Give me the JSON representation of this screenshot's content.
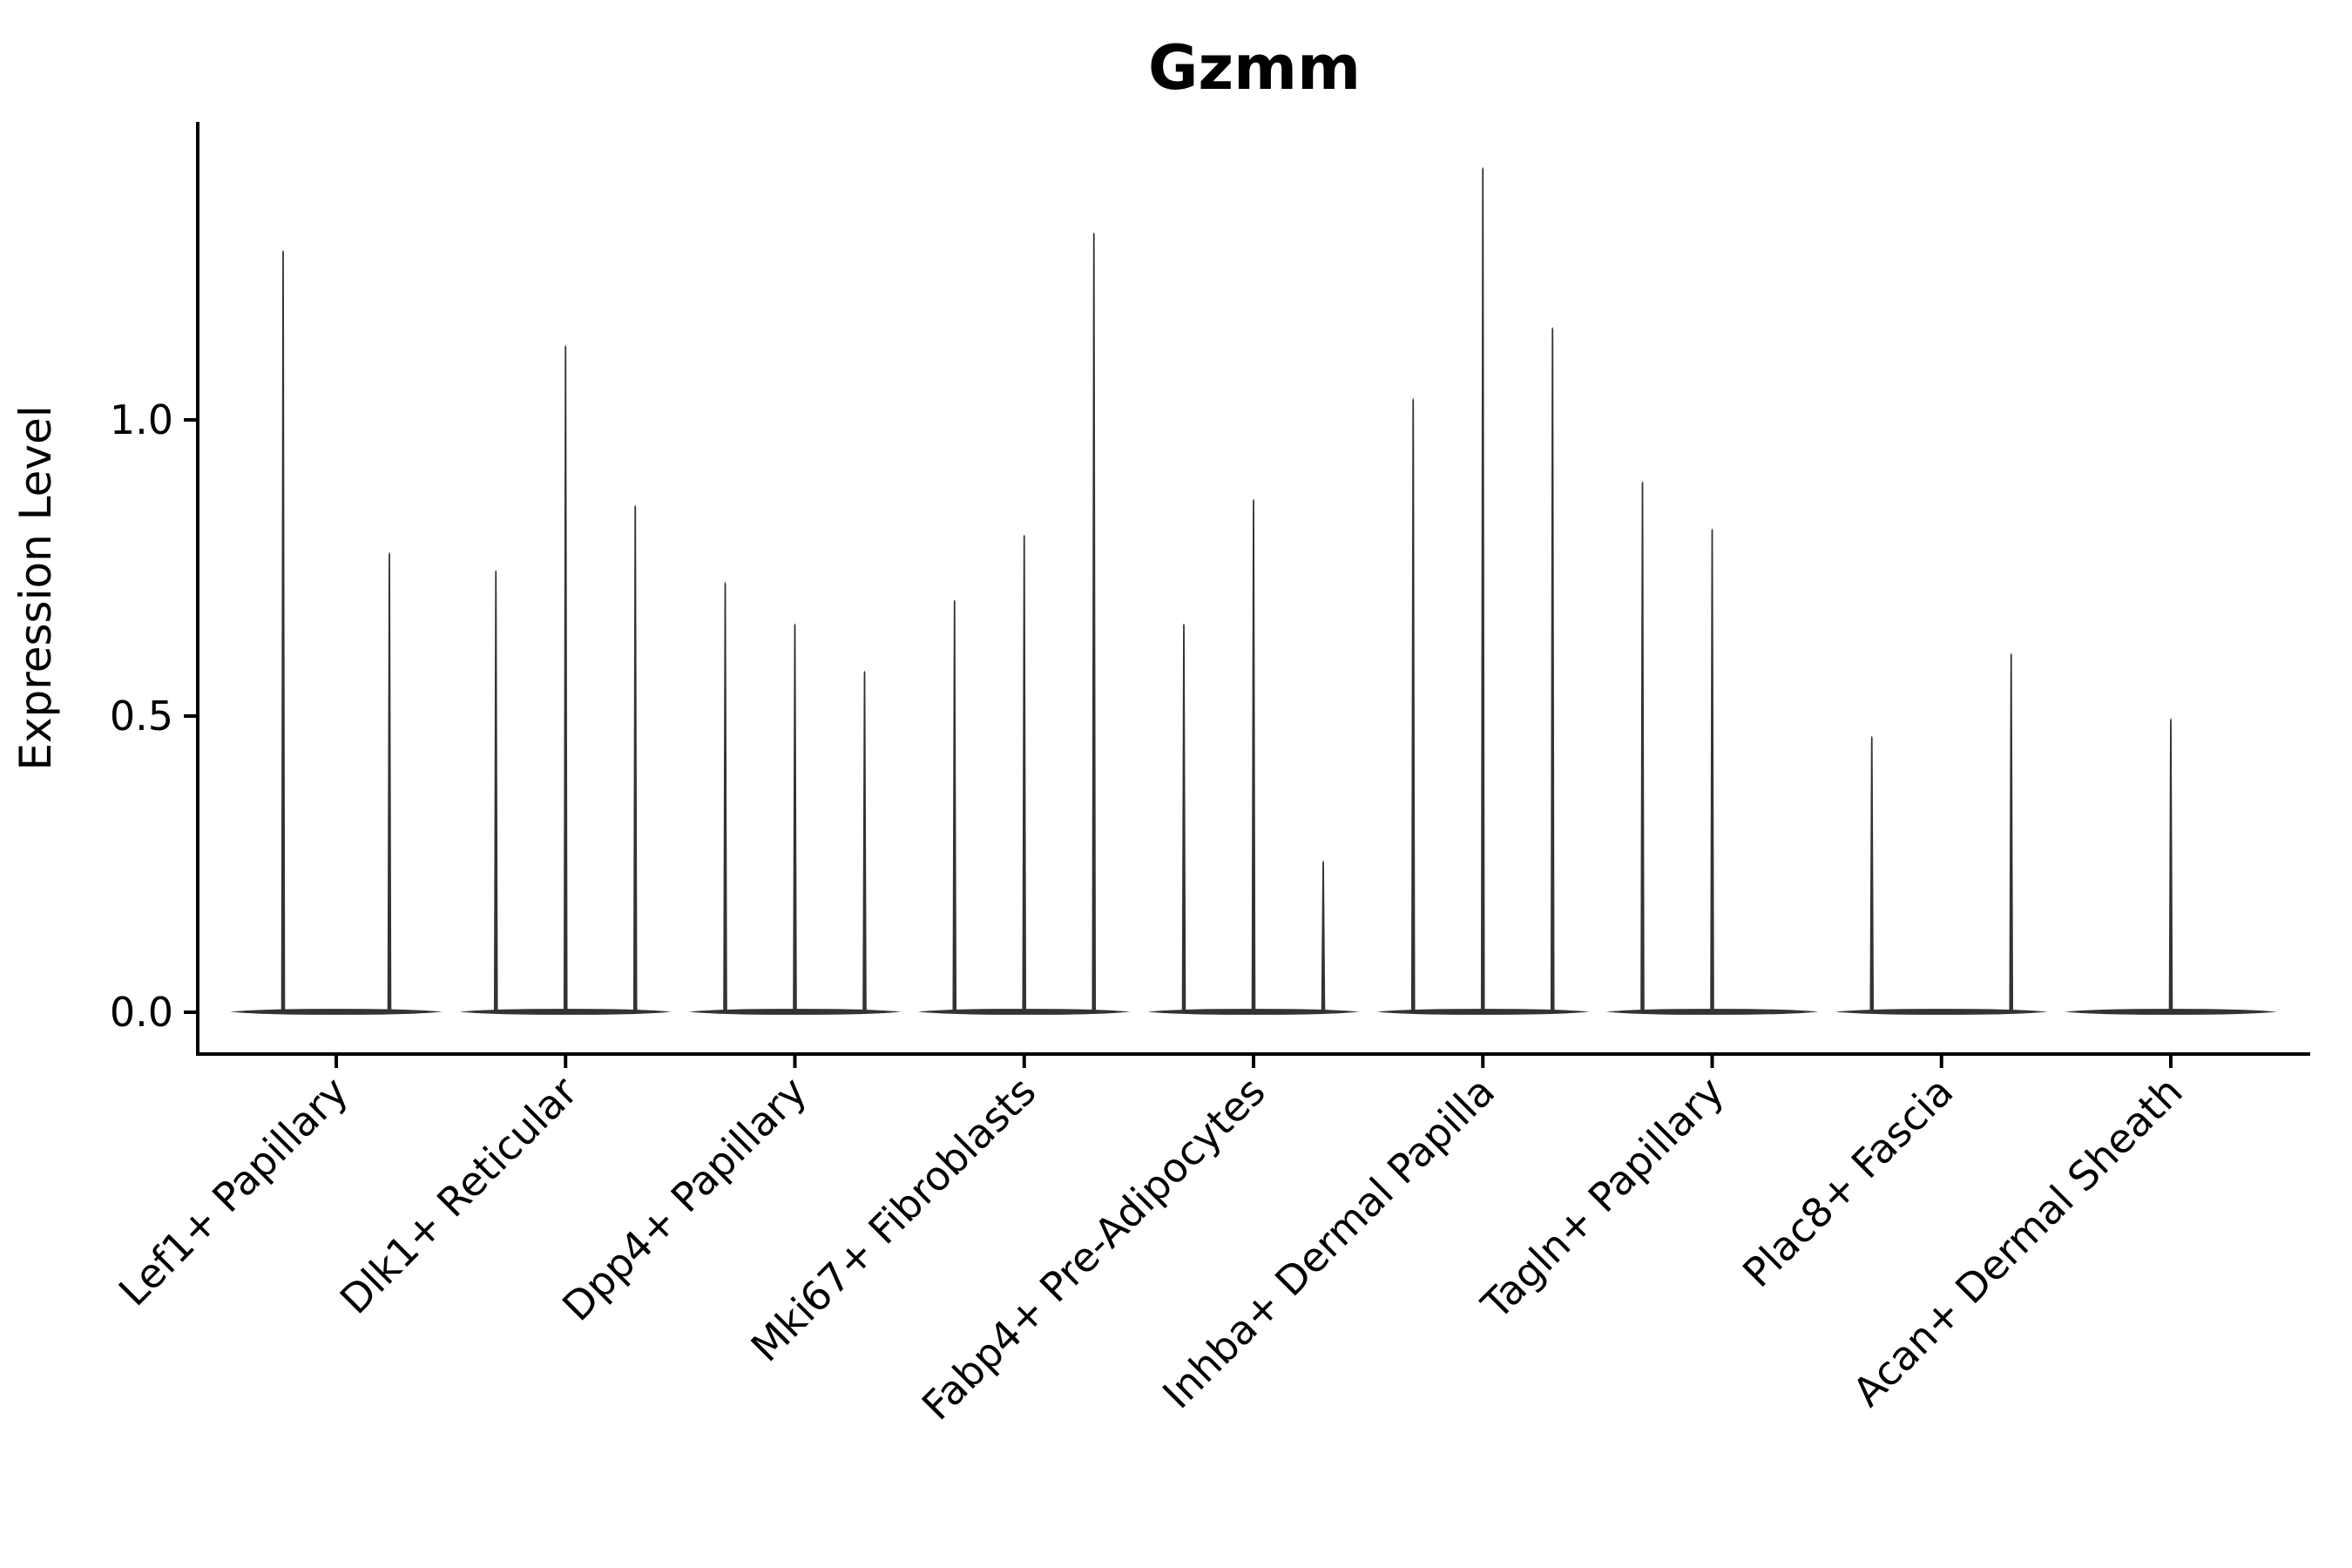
{
  "chart_data": {
    "type": "violin",
    "title": "Gzmm",
    "ylabel": "Expression Level",
    "xlabel": "",
    "yticks": [
      {
        "label": "0.0",
        "value": 0.0
      },
      {
        "label": "0.5",
        "value": 0.5
      },
      {
        "label": "1.0",
        "value": 1.0
      }
    ],
    "ylim": [
      -0.07,
      1.5
    ],
    "grid": false,
    "legend_position": "none",
    "violin_color": "#333333",
    "axis_color": "#000000",
    "categories": [
      "Lef1+ Papillary",
      "Dlk1+ Reticular",
      "Dpp4+ Papillary",
      "Mki67+ Fibroblasts",
      "Fabp4+ Pre-Adipocytes",
      "Inhba+ Dermal Papilla",
      "Tagln+ Papillary",
      "Plac8+ Fascia",
      "Acan+ Dermal Sheath"
    ],
    "series": [
      {
        "category": "Lef1+ Papillary",
        "violins": [
          {
            "slot": -0.5,
            "max_expression": 1.29
          },
          {
            "slot": 0.5,
            "max_expression": 0.78
          }
        ]
      },
      {
        "category": "Dlk1+ Reticular",
        "violins": [
          {
            "slot": -1,
            "max_expression": 0.75
          },
          {
            "slot": 0,
            "max_expression": 1.13
          },
          {
            "slot": 1,
            "max_expression": 0.86
          }
        ]
      },
      {
        "category": "Dpp4+ Papillary",
        "violins": [
          {
            "slot": -1,
            "max_expression": 0.73
          },
          {
            "slot": 0,
            "max_expression": 0.66
          },
          {
            "slot": 1,
            "max_expression": 0.58
          }
        ]
      },
      {
        "category": "Mki67+ Fibroblasts",
        "violins": [
          {
            "slot": -1,
            "max_expression": 0.7
          },
          {
            "slot": 0,
            "max_expression": 0.81
          },
          {
            "slot": 1,
            "max_expression": 1.32
          }
        ]
      },
      {
        "category": "Fabp4+ Pre-Adipocytes",
        "violins": [
          {
            "slot": -1,
            "max_expression": 0.66
          },
          {
            "slot": 0,
            "max_expression": 0.87
          },
          {
            "slot": 1,
            "max_expression": 0.26
          }
        ]
      },
      {
        "category": "Inhba+ Dermal Papilla",
        "violins": [
          {
            "slot": -1,
            "max_expression": 1.04
          },
          {
            "slot": 0,
            "max_expression": 1.43
          },
          {
            "slot": 1,
            "max_expression": 1.16
          }
        ]
      },
      {
        "category": "Tagln+ Papillary",
        "violins": [
          {
            "slot": -1,
            "max_expression": 0.9
          },
          {
            "slot": 0,
            "max_expression": 0.82
          },
          {
            "slot": 1,
            "max_expression": 0.0
          }
        ]
      },
      {
        "category": "Plac8+ Fascia",
        "violins": [
          {
            "slot": -1,
            "max_expression": 0.47
          },
          {
            "slot": 0,
            "max_expression": 0.0
          },
          {
            "slot": 1,
            "max_expression": 0.61
          }
        ]
      },
      {
        "category": "Acan+ Dermal Sheath",
        "violins": [
          {
            "slot": 0,
            "max_expression": 0.5
          }
        ]
      }
    ]
  }
}
